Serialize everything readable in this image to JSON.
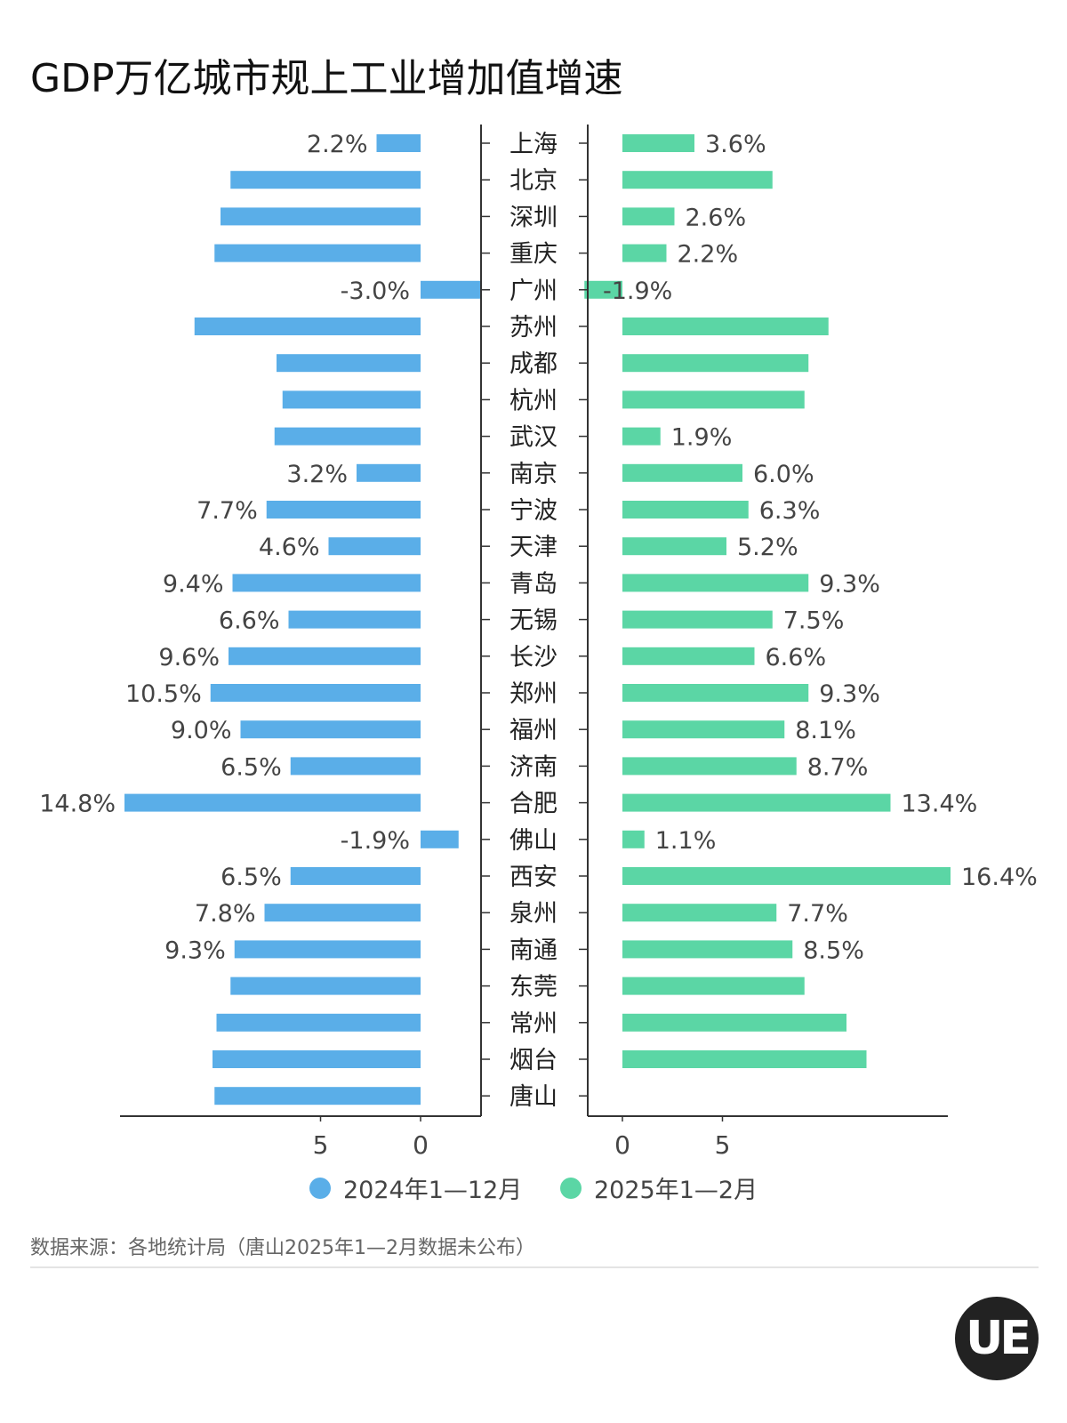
{
  "title": "GDP万亿城市规上工业增加值增速",
  "source_note": "数据来源：各地统计局（唐山2025年1—2月数据未公布）",
  "logo_text": "UE",
  "colors": {
    "series_2024": "#5aaee8",
    "series_2025": "#5bd6a5",
    "axis": "#333333"
  },
  "chart_data": {
    "type": "bar",
    "orientation": "horizontal",
    "layout": "butterfly",
    "categories": [
      "上海",
      "北京",
      "深圳",
      "重庆",
      "广州",
      "苏州",
      "成都",
      "杭州",
      "武汉",
      "南京",
      "宁波",
      "天津",
      "青岛",
      "无锡",
      "长沙",
      "郑州",
      "福州",
      "济南",
      "合肥",
      "佛山",
      "西安",
      "泉州",
      "南通",
      "东莞",
      "常州",
      "烟台",
      "唐山"
    ],
    "series": [
      {
        "name": "2024年1—12月",
        "values": [
          2.2,
          9.5,
          10.0,
          10.3,
          -3.0,
          11.3,
          7.2,
          6.9,
          7.3,
          3.2,
          7.7,
          4.6,
          9.4,
          6.6,
          9.6,
          10.5,
          9.0,
          6.5,
          14.8,
          -1.9,
          6.5,
          7.8,
          9.3,
          9.5,
          10.2,
          10.4,
          10.3
        ],
        "labels": [
          "2.2%",
          "",
          "",
          "",
          "-3.0%",
          "",
          "",
          "",
          "",
          "3.2%",
          "7.7%",
          "4.6%",
          "9.4%",
          "6.6%",
          "9.6%",
          "10.5%",
          "9.0%",
          "6.5%",
          "14.8%",
          "-1.9%",
          "6.5%",
          "7.8%",
          "9.3%",
          "",
          "",
          "",
          ""
        ]
      },
      {
        "name": "2025年1—2月",
        "values": [
          3.6,
          7.5,
          2.6,
          2.2,
          -1.9,
          10.3,
          9.3,
          9.1,
          1.9,
          6.0,
          6.3,
          5.2,
          9.3,
          7.5,
          6.6,
          9.3,
          8.1,
          8.7,
          13.4,
          1.1,
          16.4,
          7.7,
          8.5,
          9.1,
          11.2,
          12.2,
          null
        ],
        "labels": [
          "3.6%",
          "",
          "2.6%",
          "2.2%",
          "-1.9%",
          "",
          "",
          "",
          "1.9%",
          "6.0%",
          "6.3%",
          "5.2%",
          "9.3%",
          "7.5%",
          "6.6%",
          "9.3%",
          "8.1%",
          "8.7%",
          "13.4%",
          "1.1%",
          "16.4%",
          "7.7%",
          "8.5%",
          "",
          "",
          "",
          ""
        ]
      }
    ],
    "x_ticks_left": [
      "5",
      "0"
    ],
    "x_ticks_right": [
      "0",
      "5"
    ],
    "xlabel": "",
    "ylabel": "",
    "grid": false,
    "legend_position": "bottom"
  }
}
